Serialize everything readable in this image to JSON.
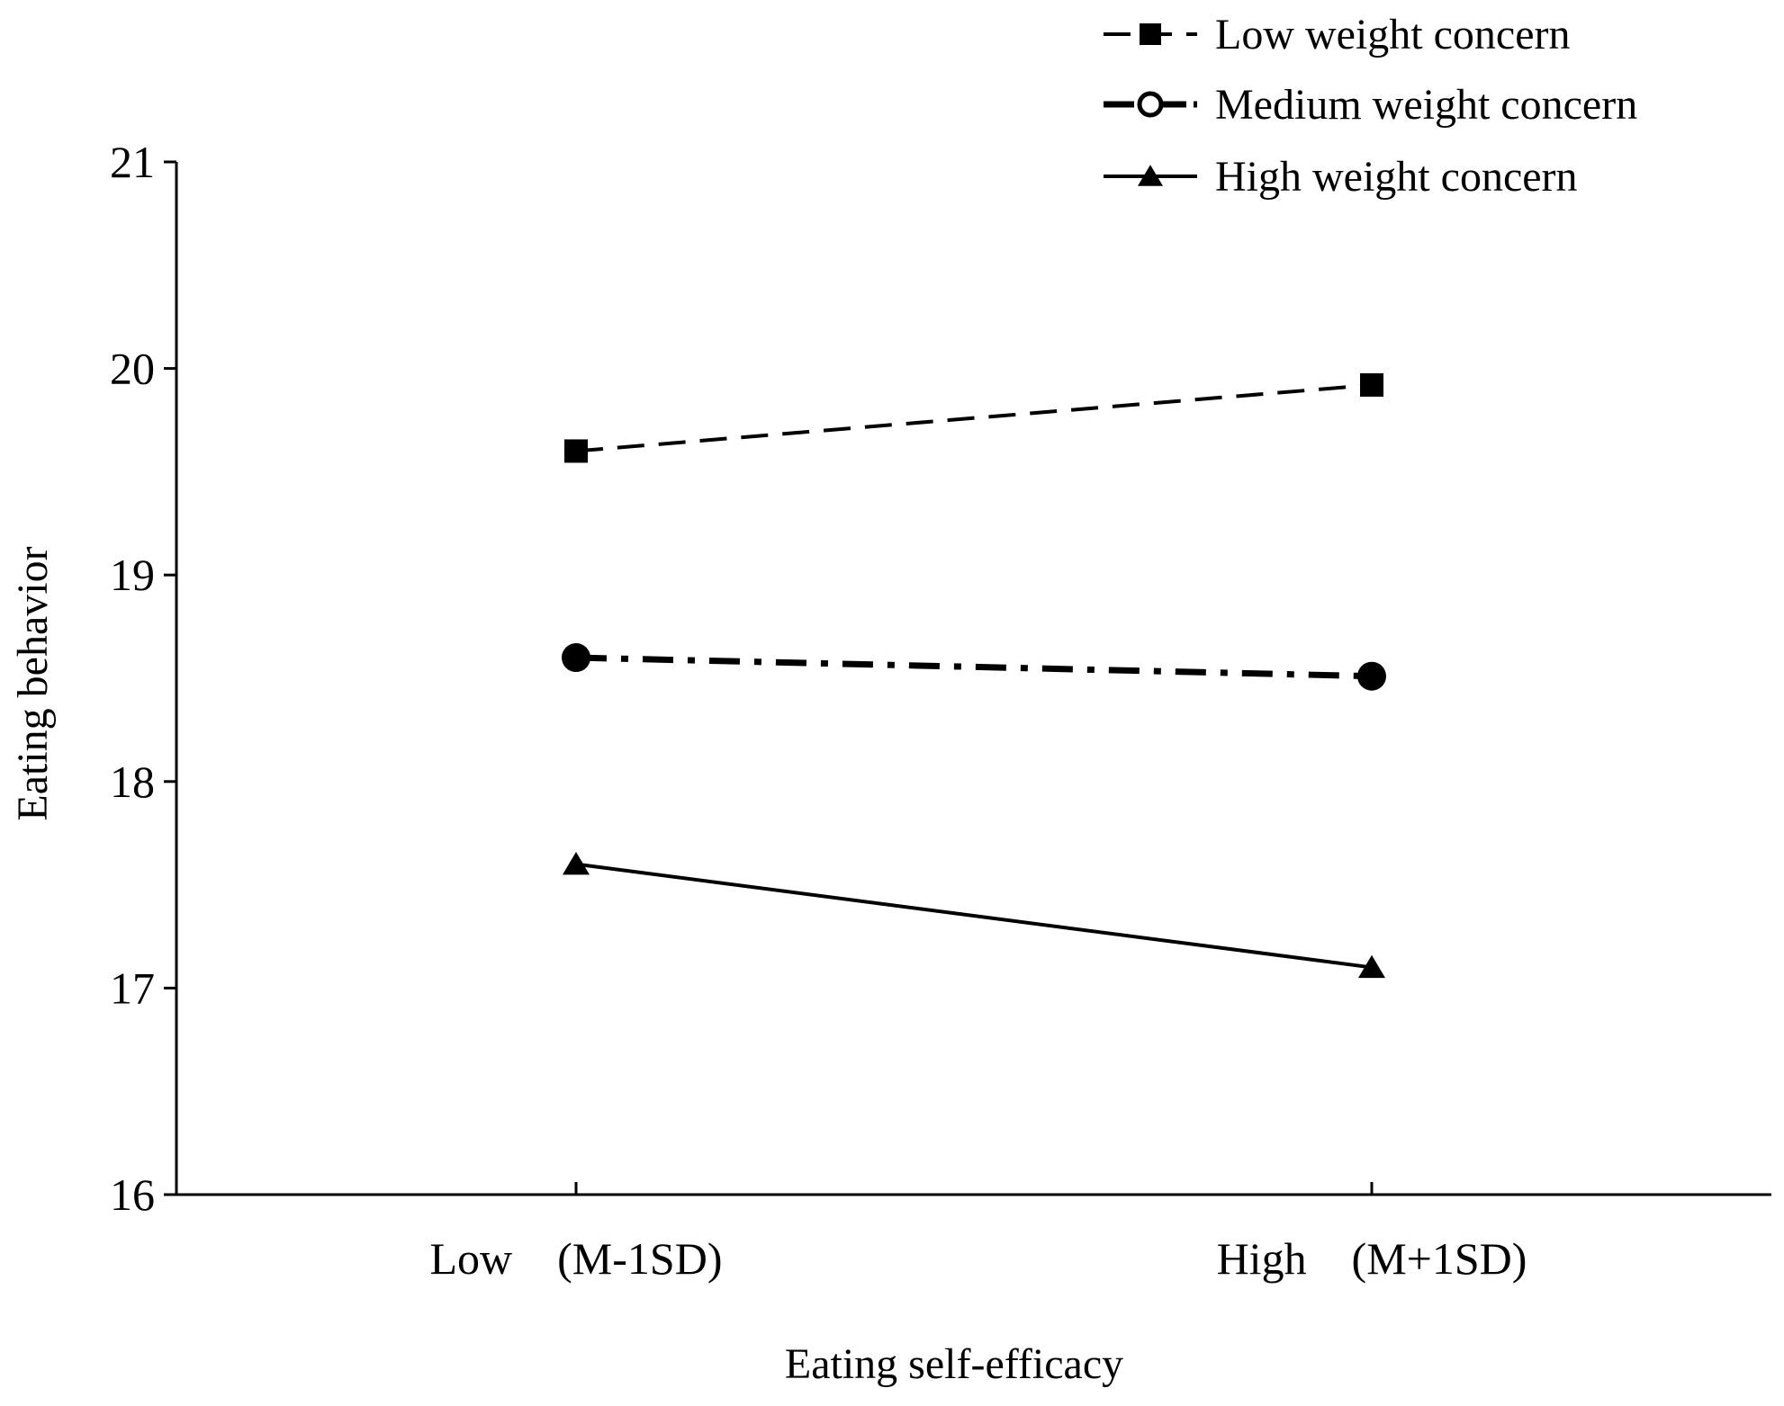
{
  "chart_data": {
    "type": "line",
    "title": "",
    "xlabel": "Eating self-efficacy",
    "ylabel": "Eating behavior",
    "categories": [
      "Low　(M-1SD)",
      "High　(M+1SD)"
    ],
    "ylim": [
      16,
      21
    ],
    "yticks": [
      16,
      17,
      18,
      19,
      20,
      21
    ],
    "grid": false,
    "legend_position": "top-right",
    "series": [
      {
        "name": "Low weight concern",
        "values": [
          19.6,
          19.92
        ],
        "marker": "square",
        "line_style": "dashed"
      },
      {
        "name": "Medium weight concern",
        "values": [
          18.6,
          18.51
        ],
        "marker": "circle",
        "line_style": "dash-dot"
      },
      {
        "name": "High weight concern",
        "values": [
          17.6,
          17.1
        ],
        "marker": "triangle",
        "line_style": "solid"
      }
    ]
  },
  "colors": {
    "ink": "#000000",
    "background": "#ffffff"
  }
}
